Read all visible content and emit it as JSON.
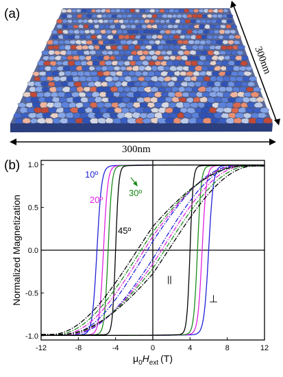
{
  "figure": {
    "panel_a": {
      "label": "(a)",
      "width_label": "300nm",
      "depth_label": "300nm",
      "palette": [
        "#2f52b7",
        "#3b5fc4",
        "#4a6fd0",
        "#5b82db",
        "#6f93e2",
        "#86a6e8",
        "#a0b8ea",
        "#bccbe8",
        "#d6d9e3",
        "#e8d2c8",
        "#efb59e",
        "#e98f73",
        "#d9684f",
        "#c24a37"
      ]
    },
    "panel_b": {
      "label": "(b)"
    }
  },
  "chart_data": {
    "type": "line",
    "xlabel_prefix": "μ",
    "xlabel_sub1": "0",
    "xlabel_italic": "H",
    "xlabel_sub2": "ext",
    "xlabel_unit": "(T)",
    "ylabel": "Normalized Magnetization",
    "xlim": [
      -12,
      12
    ],
    "ylim": [
      -1.05,
      1.05
    ],
    "xticks": [
      -12,
      -8,
      -4,
      0,
      4,
      8,
      12
    ],
    "yticks": [
      -1.0,
      -0.5,
      0.0,
      0.5,
      1.0
    ],
    "ytick_labels": [
      "-1.0",
      "-0.5",
      "0.0",
      "0.5",
      "1.0"
    ],
    "series": [
      {
        "name": "10º",
        "color": "#1f1fd6",
        "style": "solid",
        "kind": "square",
        "coercive_field": 6.0,
        "sharpness": 2.0
      },
      {
        "name": "20º",
        "color": "#e020e0",
        "style": "solid",
        "kind": "square",
        "coercive_field": 5.3,
        "sharpness": 2.2
      },
      {
        "name": "30º",
        "color": "#1a8a1a",
        "style": "solid",
        "kind": "square",
        "coercive_field": 4.8,
        "sharpness": 2.5
      },
      {
        "name": "45º",
        "color": "#000000",
        "style": "solid",
        "kind": "square",
        "coercive_field": 4.0,
        "sharpness": 3.0
      },
      {
        "name": "",
        "color": "#1f1fd6",
        "style": "dashdot",
        "kind": "inplane",
        "coercive_field": 0.6,
        "saturation_field": 9.0
      },
      {
        "name": "",
        "color": "#e020e0",
        "style": "dashdot",
        "kind": "inplane",
        "coercive_field": 1.0,
        "saturation_field": 9.5
      },
      {
        "name": "",
        "color": "#1a8a1a",
        "style": "dashdot",
        "kind": "inplane",
        "coercive_field": 1.4,
        "saturation_field": 10.0
      },
      {
        "name": "",
        "color": "#000000",
        "style": "dashdot",
        "kind": "inplane",
        "coercive_field": 1.9,
        "saturation_field": 10.5
      }
    ],
    "annotations": {
      "angle_10": "10º",
      "angle_20": "20º",
      "angle_30": "30º",
      "angle_45": "45º",
      "parallel_symbol": "||",
      "perpendicular_symbol": "⊥"
    }
  }
}
